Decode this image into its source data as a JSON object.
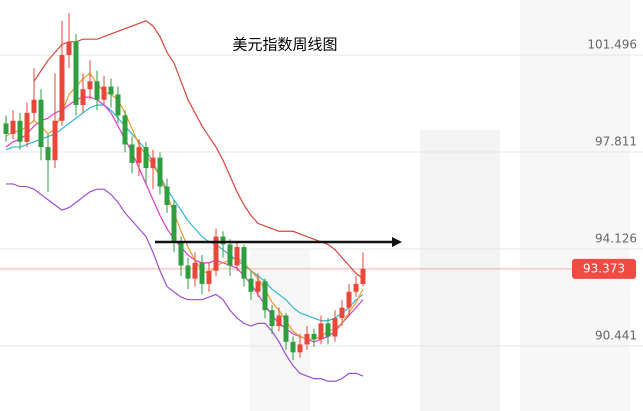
{
  "chart_data": {
    "type": "candlestick",
    "title": "美元指数周线图",
    "ylim": [
      87.97,
      103.59
    ],
    "yticks": [
      90.441,
      94.126,
      97.811,
      101.496
    ],
    "grid": true,
    "up_color": "#e8473a",
    "down_color": "#2e9e3e",
    "last_color": "#f04b43",
    "open": [
      98.9,
      98.5,
      99.0,
      98.2,
      99.3,
      99.8,
      98.0,
      97.5,
      99.0,
      101.5,
      102.0,
      99.6,
      100.2,
      100.5,
      99.8,
      100.3,
      100.0,
      99.2,
      98.1,
      97.4,
      98.0,
      97.2,
      97.6,
      96.5,
      95.8,
      94.4,
      93.5,
      93.0,
      93.6,
      92.8,
      93.3,
      94.6,
      94.3,
      93.5,
      94.2,
      93.0,
      92.5,
      92.9,
      91.8,
      91.2,
      91.6,
      90.6,
      90.2,
      90.5,
      90.9,
      90.7,
      91.3,
      90.8,
      91.5,
      91.9,
      92.5,
      92.8
    ],
    "high": [
      99.2,
      99.4,
      99.3,
      99.7,
      101.0,
      100.2,
      98.5,
      100.8,
      102.8,
      103.1,
      102.3,
      100.8,
      101.3,
      100.9,
      100.7,
      100.6,
      100.3,
      99.4,
      98.4,
      98.3,
      98.2,
      97.9,
      97.8,
      96.8,
      96.0,
      94.6,
      93.8,
      94.0,
      93.9,
      93.6,
      94.9,
      94.8,
      94.5,
      94.4,
      94.3,
      93.3,
      93.2,
      93.0,
      92.0,
      91.9,
      91.7,
      90.8,
      90.9,
      91.2,
      91.1,
      91.6,
      91.5,
      91.8,
      92.2,
      92.8,
      93.1,
      94.0
    ],
    "low": [
      98.2,
      98.3,
      97.9,
      98.0,
      99.0,
      97.5,
      96.3,
      97.2,
      98.8,
      101.0,
      99.2,
      99.3,
      99.8,
      99.4,
      99.6,
      99.5,
      98.9,
      97.8,
      97.0,
      96.9,
      96.6,
      96.4,
      96.2,
      95.5,
      94.0,
      93.1,
      92.6,
      92.7,
      92.4,
      92.5,
      93.1,
      93.8,
      93.1,
      93.3,
      92.7,
      92.2,
      92.3,
      91.5,
      90.9,
      91.0,
      90.3,
      89.9,
      90.0,
      90.3,
      90.4,
      90.5,
      90.5,
      90.6,
      91.2,
      91.6,
      92.3,
      92.7
    ],
    "close": [
      98.5,
      99.0,
      98.2,
      99.3,
      99.8,
      98.0,
      97.5,
      99.0,
      101.5,
      102.0,
      99.6,
      100.2,
      100.5,
      99.8,
      100.3,
      100.0,
      99.2,
      98.1,
      97.4,
      98.0,
      97.2,
      97.6,
      96.5,
      95.8,
      94.4,
      93.5,
      93.0,
      93.6,
      92.8,
      93.3,
      94.6,
      94.3,
      93.5,
      94.2,
      93.0,
      92.5,
      92.9,
      91.8,
      91.2,
      91.6,
      90.6,
      90.2,
      90.5,
      90.9,
      90.7,
      91.3,
      90.8,
      91.5,
      91.9,
      92.5,
      92.8,
      93.373
    ],
    "lines": [
      {
        "color": "#d9443a",
        "values": [
          null,
          null,
          null,
          null,
          100.5,
          100.9,
          101.3,
          101.6,
          101.9,
          102.0,
          102.0,
          102.1,
          102.1,
          102.1,
          102.2,
          102.3,
          102.4,
          102.5,
          102.6,
          102.7,
          102.8,
          102.6,
          102.2,
          101.6,
          101.2,
          100.5,
          99.8,
          99.3,
          98.8,
          98.4,
          98.0,
          97.5,
          96.9,
          96.3,
          95.8,
          95.4,
          95.1,
          95.0,
          94.9,
          94.8,
          94.8,
          94.8,
          94.7,
          94.6,
          94.5,
          94.4,
          94.3,
          94.1,
          93.8,
          93.5,
          93.2,
          93.0
        ]
      },
      {
        "color": "#9b4fd0",
        "values": [
          96.6,
          96.6,
          96.5,
          96.5,
          96.4,
          96.2,
          96.0,
          95.8,
          95.6,
          95.7,
          95.9,
          96.1,
          96.3,
          96.4,
          96.4,
          96.2,
          95.9,
          95.5,
          95.2,
          94.9,
          94.6,
          94.0,
          93.3,
          92.7,
          92.5,
          92.3,
          92.2,
          92.2,
          92.2,
          92.3,
          92.4,
          92.2,
          91.8,
          91.5,
          91.3,
          91.2,
          91.3,
          91.3,
          91.0,
          90.6,
          90.1,
          89.7,
          89.4,
          89.3,
          89.2,
          89.2,
          89.1,
          89.1,
          89.2,
          89.4,
          89.4,
          89.3
        ]
      },
      {
        "color": "#33b5d6",
        "values": [
          97.9,
          98.0,
          98.0,
          98.1,
          98.2,
          98.3,
          98.4,
          98.5,
          98.7,
          98.9,
          99.1,
          99.3,
          99.5,
          99.6,
          99.6,
          99.4,
          99.1,
          98.8,
          98.5,
          98.2,
          97.9,
          97.4,
          96.9,
          96.4,
          96.0,
          95.6,
          95.2,
          94.9,
          94.6,
          94.4,
          94.3,
          94.1,
          93.9,
          93.7,
          93.5,
          93.3,
          93.1,
          92.9,
          92.6,
          92.4,
          92.2,
          91.9,
          91.7,
          91.6,
          91.5,
          91.4,
          91.4,
          91.5,
          91.7,
          91.9,
          92.2,
          92.4
        ]
      },
      {
        "color": "#e03ad0",
        "values": [
          98.0,
          98.2,
          98.3,
          98.5,
          98.8,
          99.0,
          99.1,
          99.3,
          99.4,
          99.6,
          99.8,
          99.9,
          99.9,
          99.8,
          99.6,
          99.3,
          98.8,
          98.3,
          97.8,
          97.2,
          96.6,
          96.0,
          95.4,
          94.9,
          94.5,
          94.2,
          93.9,
          93.7,
          93.6,
          93.6,
          93.7,
          93.6,
          93.5,
          93.4,
          93.1,
          92.8,
          92.4,
          92.0,
          91.6,
          91.3,
          91.1,
          90.9,
          90.8,
          90.7,
          90.6,
          90.7,
          90.8,
          91.0,
          91.3,
          91.6,
          91.9,
          92.2
        ]
      },
      {
        "color": "#f09a2a",
        "values": [
          98.4,
          98.6,
          98.6,
          98.8,
          99.0,
          98.8,
          98.5,
          98.7,
          99.3,
          100.0,
          100.3,
          100.6,
          100.8,
          100.4,
          100.1,
          100.0,
          99.8,
          99.3,
          98.7,
          98.1,
          97.7,
          97.3,
          96.9,
          96.2,
          95.5,
          94.8,
          94.2,
          93.7,
          93.3,
          93.2,
          93.5,
          93.6,
          93.7,
          93.8,
          93.6,
          93.3,
          93.0,
          92.6,
          92.1,
          91.8,
          91.4,
          91.0,
          90.8,
          90.7,
          90.7,
          90.8,
          91.0,
          91.1,
          91.3,
          91.7,
          92.1,
          92.6
        ]
      }
    ]
  }
}
